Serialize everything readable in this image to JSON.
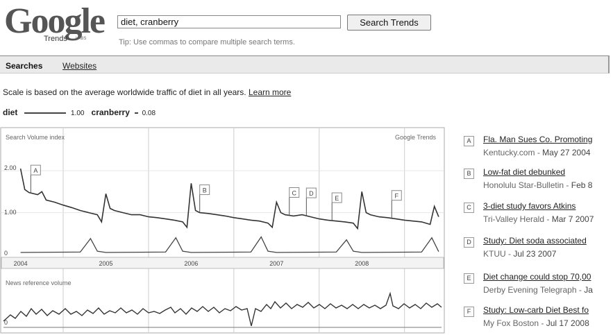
{
  "logo": {
    "word": "Google",
    "sub": "Trends",
    "labs": "LABS"
  },
  "search": {
    "value": "diet, cranberry",
    "button": "Search Trends",
    "tip": "Tip: Use commas to compare multiple search terms."
  },
  "tabs": {
    "searches": "Searches",
    "websites": "Websites"
  },
  "scale": {
    "text": "Scale is based on the average worldwide traffic of diet in all years.",
    "learn_more": "Learn more"
  },
  "legend": [
    {
      "term": "diet",
      "value": "1.00"
    },
    {
      "term": "cranberry",
      "value": "0.08"
    }
  ],
  "chart": {
    "top_label": "Search Volume index",
    "brand": "Google Trends",
    "bottom_label": "News reference volume",
    "y_ticks": [
      "2.00",
      "1.00",
      "0"
    ],
    "news_zero": "0",
    "years": [
      "2004",
      "2005",
      "2006",
      "2007",
      "2008"
    ]
  },
  "chart_data": {
    "type": "line",
    "x_unit": "year",
    "xlim": [
      2003.8,
      2008.95
    ],
    "ylim": [
      0,
      2.3
    ],
    "series": [
      {
        "name": "diet",
        "x": [
          2004.0,
          2004.05,
          2004.1,
          2004.2,
          2004.25,
          2004.3,
          2004.4,
          2004.5,
          2004.6,
          2004.7,
          2004.8,
          2004.9,
          2004.95,
          2005.0,
          2005.05,
          2005.1,
          2005.2,
          2005.3,
          2005.4,
          2005.5,
          2005.6,
          2005.7,
          2005.8,
          2005.9,
          2005.95,
          2006.0,
          2006.05,
          2006.1,
          2006.2,
          2006.3,
          2006.4,
          2006.5,
          2006.6,
          2006.7,
          2006.8,
          2006.9,
          2006.95,
          2007.0,
          2007.05,
          2007.1,
          2007.2,
          2007.3,
          2007.4,
          2007.5,
          2007.6,
          2007.7,
          2007.8,
          2007.9,
          2007.95,
          2008.0,
          2008.05,
          2008.1,
          2008.2,
          2008.3,
          2008.4,
          2008.5,
          2008.6,
          2008.7,
          2008.8,
          2008.85,
          2008.9
        ],
        "y": [
          2.05,
          1.55,
          1.48,
          1.43,
          1.5,
          1.3,
          1.25,
          1.18,
          1.12,
          1.05,
          1.0,
          0.95,
          0.78,
          1.45,
          1.1,
          1.05,
          1.0,
          0.95,
          0.95,
          0.9,
          0.88,
          0.85,
          0.82,
          0.78,
          0.65,
          1.7,
          1.05,
          1.0,
          0.98,
          0.95,
          0.92,
          0.88,
          0.85,
          0.82,
          0.8,
          0.75,
          0.65,
          1.25,
          1.0,
          0.95,
          0.92,
          0.95,
          0.9,
          0.85,
          0.82,
          0.8,
          0.78,
          0.75,
          0.62,
          1.5,
          1.0,
          0.95,
          0.9,
          0.88,
          0.85,
          0.82,
          0.8,
          0.78,
          0.72,
          1.15,
          0.9
        ]
      },
      {
        "name": "cranberry",
        "x": [
          2004.0,
          2004.7,
          2004.82,
          2004.9,
          2005.0,
          2005.7,
          2005.82,
          2005.9,
          2006.0,
          2006.7,
          2006.82,
          2006.9,
          2007.0,
          2007.7,
          2007.82,
          2007.9,
          2008.0,
          2008.7,
          2008.82,
          2008.9
        ],
        "y": [
          0.05,
          0.06,
          0.38,
          0.08,
          0.05,
          0.06,
          0.4,
          0.08,
          0.05,
          0.06,
          0.42,
          0.08,
          0.05,
          0.06,
          0.35,
          0.08,
          0.05,
          0.06,
          0.4,
          0.07
        ]
      }
    ],
    "annotations": [
      {
        "label": "A",
        "x": 2004.12
      },
      {
        "label": "B",
        "x": 2006.1
      },
      {
        "label": "C",
        "x": 2007.15
      },
      {
        "label": "D",
        "x": 2007.35
      },
      {
        "label": "E",
        "x": 2007.65
      },
      {
        "label": "F",
        "x": 2008.35
      }
    ]
  },
  "news": [
    {
      "letter": "A",
      "title": "Fla. Man Sues Co. Promoting",
      "source": "Kentucky.com",
      "date": "May 27 2004"
    },
    {
      "letter": "B",
      "title": "Low-fat diet debunked",
      "source": "Honolulu Star-Bulletin",
      "date": "Feb 8"
    },
    {
      "letter": "C",
      "title": "3-diet study favors Atkins",
      "source": "Tri-Valley Herald",
      "date": "Mar 7 2007"
    },
    {
      "letter": "D",
      "title": "Study: Diet soda associated",
      "source": "KTUU",
      "date": "Jul 23 2007"
    },
    {
      "letter": "E",
      "title": "Diet change could stop 70,00",
      "source": "Derby Evening Telegraph",
      "date": "Ja"
    },
    {
      "letter": "F",
      "title": "Study: Low-carb Diet Best fo",
      "source": "My Fox Boston",
      "date": "Jul 17 2008"
    }
  ]
}
